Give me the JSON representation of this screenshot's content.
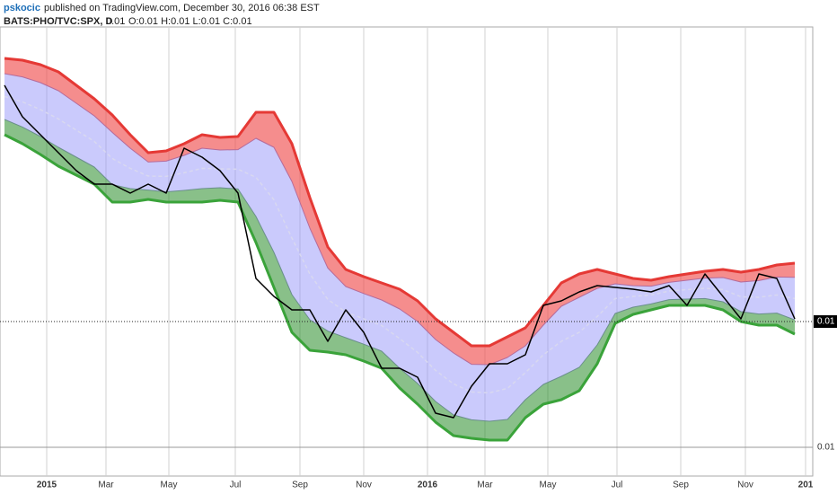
{
  "header": {
    "author": "pskocic",
    "published": "published on TradingView.com, December 30, 2016 06:38 EST"
  },
  "chart_data": {
    "type": "line",
    "symbol": "BATS:PHO/TVC:SPX, D",
    "last": "0.01",
    "ohlc": "O:0.01 H:0.01 L:0.01 C:0.01",
    "xlim": [
      -0.25,
      45
    ],
    "xticks": [
      {
        "value": 2.35,
        "label": "2015"
      },
      {
        "value": 5.65,
        "label": "Mar"
      },
      {
        "value": 9.15,
        "label": "May"
      },
      {
        "value": 12.85,
        "label": "Jul"
      },
      {
        "value": 16.45,
        "label": "Sep"
      },
      {
        "value": 20,
        "label": "Nov"
      },
      {
        "value": 23.55,
        "label": "2016"
      },
      {
        "value": 26.75,
        "label": "Mar"
      },
      {
        "value": 30.25,
        "label": "May"
      },
      {
        "value": 34.1,
        "label": "Jul"
      },
      {
        "value": 37.65,
        "label": "Sep"
      },
      {
        "value": 41.25,
        "label": "Nov"
      },
      {
        "value": 44.6,
        "label": "201"
      }
    ],
    "ylim": [
      0.00944,
      0.01194
    ],
    "yticks": [
      {
        "value": 0.0096,
        "label": "0.01"
      }
    ],
    "last_price": {
      "value": 0.0103,
      "label": "0.01"
    },
    "grid": true,
    "series": [
      {
        "color": "#e53935",
        "width": 3,
        "values": [
          0.011765,
          0.011755,
          0.01173,
          0.01169,
          0.011615,
          0.01154,
          0.01145,
          0.01134,
          0.01124,
          0.01125,
          0.01129,
          0.01134,
          0.011325,
          0.01133,
          0.011465,
          0.011465,
          0.01129,
          0.01099,
          0.010715,
          0.01059,
          0.01055,
          0.010515,
          0.01048,
          0.010415,
          0.010315,
          0.01024,
          0.010165,
          0.010165,
          0.010215,
          0.010265,
          0.01039,
          0.010515,
          0.010565,
          0.01059,
          0.010565,
          0.01054,
          0.01053,
          0.01055,
          0.010565,
          0.01058,
          0.01059,
          0.010575,
          0.01059,
          0.010615,
          0.010625
        ]
      },
      {
        "color": "#b56b9a",
        "width": 1,
        "values": [
          0.01168,
          0.011662,
          0.01163,
          0.011585,
          0.011515,
          0.011445,
          0.011353,
          0.011265,
          0.011188,
          0.011193,
          0.011225,
          0.011265,
          0.011255,
          0.011257,
          0.01132,
          0.01127,
          0.01108,
          0.01082,
          0.010598,
          0.010495,
          0.010456,
          0.01042,
          0.01037,
          0.0103,
          0.0102,
          0.010125,
          0.010062,
          0.01006,
          0.0101,
          0.010165,
          0.01028,
          0.010385,
          0.010435,
          0.010485,
          0.01051,
          0.0105,
          0.010497,
          0.010518,
          0.01053,
          0.010542,
          0.010545,
          0.01052,
          0.010528,
          0.010548,
          0.010546
        ]
      },
      {
        "color": "#d8d8f0",
        "width": 1.5,
        "dash": "4 3",
        "values": [
          0.011553,
          0.011523,
          0.01148,
          0.011428,
          0.011365,
          0.011303,
          0.011208,
          0.011153,
          0.01111,
          0.011108,
          0.011128,
          0.011153,
          0.01115,
          0.011148,
          0.011103,
          0.010978,
          0.010765,
          0.010565,
          0.010423,
          0.010353,
          0.010315,
          0.010278,
          0.010205,
          0.010128,
          0.010028,
          0.009953,
          0.009908,
          0.009903,
          0.009928,
          0.010015,
          0.010115,
          0.01019,
          0.01024,
          0.010328,
          0.010428,
          0.01044,
          0.010448,
          0.01047,
          0.010478,
          0.010485,
          0.010478,
          0.010438,
          0.010435,
          0.010448,
          0.010428
        ]
      },
      {
        "color": "#6a8f8a",
        "width": 1,
        "values": [
          0.011425,
          0.011383,
          0.01133,
          0.01127,
          0.011215,
          0.01116,
          0.011062,
          0.01104,
          0.011032,
          0.011022,
          0.01103,
          0.01104,
          0.011045,
          0.011038,
          0.010885,
          0.010685,
          0.01045,
          0.01031,
          0.010247,
          0.01021,
          0.010174,
          0.010135,
          0.01004,
          0.009955,
          0.009855,
          0.00978,
          0.009753,
          0.009745,
          0.009755,
          0.009865,
          0.00995,
          0.009995,
          0.010045,
          0.01017,
          0.010345,
          0.01038,
          0.010398,
          0.010422,
          0.010425,
          0.010428,
          0.01041,
          0.010355,
          0.010342,
          0.010347,
          0.010309
        ]
      },
      {
        "color": "#3aa33a",
        "width": 3,
        "values": [
          0.01134,
          0.01129,
          0.01123,
          0.011165,
          0.011115,
          0.011065,
          0.010965,
          0.010965,
          0.01098,
          0.010965,
          0.010965,
          0.010965,
          0.010975,
          0.010965,
          0.01074,
          0.01049,
          0.01024,
          0.01014,
          0.01013,
          0.010115,
          0.01008,
          0.01004,
          0.00993,
          0.00984,
          0.00974,
          0.009665,
          0.00965,
          0.00964,
          0.00964,
          0.009765,
          0.00984,
          0.009865,
          0.009915,
          0.010065,
          0.01029,
          0.01034,
          0.010365,
          0.01039,
          0.01039,
          0.01039,
          0.010365,
          0.0103,
          0.01028,
          0.01028,
          0.01023
        ]
      },
      {
        "color": "#000000",
        "width": 1.5,
        "values": [
          0.011615,
          0.01144,
          0.01134,
          0.01124,
          0.01114,
          0.011065,
          0.011065,
          0.011015,
          0.011065,
          0.011015,
          0.011265,
          0.011215,
          0.01114,
          0.011015,
          0.01054,
          0.01044,
          0.010365,
          0.010365,
          0.01019,
          0.010365,
          0.01024,
          0.01004,
          0.01004,
          0.00999,
          0.00979,
          0.009765,
          0.00994,
          0.010065,
          0.010065,
          0.010115,
          0.01039,
          0.010415,
          0.010465,
          0.0105,
          0.01049,
          0.01048,
          0.010465,
          0.0105,
          0.01039,
          0.010565,
          0.01044,
          0.010315,
          0.010565,
          0.01054,
          0.010315
        ]
      }
    ],
    "fills": [
      {
        "from": 0,
        "to": 1,
        "color": "rgba(240,80,80,0.65)"
      },
      {
        "from": 1,
        "to": 3,
        "color": "rgba(150,150,250,0.5)"
      },
      {
        "from": 3,
        "to": 4,
        "color": "rgba(40,140,40,0.55)"
      }
    ]
  }
}
